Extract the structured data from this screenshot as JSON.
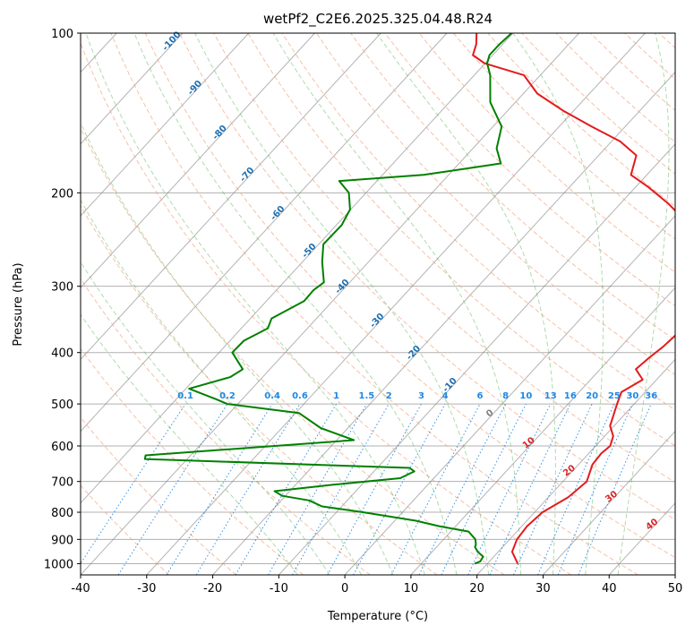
{
  "chart_data": {
    "type": "skew-t",
    "title": "wetPf2_C2E6.2025.325.04.48.R24",
    "xlabel": "Temperature (°C)",
    "ylabel": "Pressure (hPa)",
    "xlim": [
      -40,
      50
    ],
    "ylim": [
      1050,
      100
    ],
    "y_scale": "log",
    "grid": true,
    "x_ticks": [
      "-40",
      "-30",
      "-20",
      "-10",
      "0",
      "10",
      "20",
      "30",
      "40",
      "50"
    ],
    "y_ticks": [
      "100",
      "200",
      "300",
      "400",
      "500",
      "600",
      "700",
      "800",
      "900",
      "1000"
    ],
    "colors": {
      "temperature": "#e41a1c",
      "dewpoint": "#008000",
      "isotherm": "#808080",
      "dry_adiabat": "#f4a582",
      "moist_adiabat": "#4daf4a",
      "mixing_ratio": "#1e88e5",
      "isotherm_label": "#1f6fb0",
      "adiabat_label": "#d62728"
    },
    "series": [
      {
        "key": "temperature",
        "points": [
          [
            24.6,
            1000
          ],
          [
            22.1,
            950
          ],
          [
            21.1,
            900
          ],
          [
            20.8,
            850
          ],
          [
            21.2,
            800
          ],
          [
            23.0,
            750
          ],
          [
            23.6,
            700
          ],
          [
            22.1,
            650
          ],
          [
            21.9,
            620
          ],
          [
            22.2,
            600
          ],
          [
            21.3,
            575
          ],
          [
            19.4,
            550
          ],
          [
            17.4,
            500
          ],
          [
            16.4,
            475
          ],
          [
            17.9,
            450
          ],
          [
            15.4,
            430
          ],
          [
            15.8,
            410
          ],
          [
            16.4,
            390
          ],
          [
            16.7,
            370
          ],
          [
            15.6,
            350
          ],
          [
            14.7,
            330
          ],
          [
            14.2,
            310
          ],
          [
            13.4,
            290
          ],
          [
            11.0,
            270
          ],
          [
            7.6,
            250
          ],
          [
            3.4,
            230
          ],
          [
            -2.6,
            210
          ],
          [
            -8.1,
            195
          ],
          [
            -12.4,
            185
          ],
          [
            -14.3,
            170
          ],
          [
            -18.7,
            160
          ],
          [
            -25.1,
            150
          ],
          [
            -31.6,
            140
          ],
          [
            -37.9,
            130
          ],
          [
            -42.5,
            120
          ],
          [
            -50.1,
            114
          ],
          [
            -53.0,
            110
          ],
          [
            -54.0,
            105
          ],
          [
            -55.5,
            100
          ]
        ]
      },
      {
        "key": "dewpoint",
        "points": [
          [
            18.1,
            1000
          ],
          [
            18.6,
            990
          ],
          [
            18.4,
            970
          ],
          [
            16.9,
            950
          ],
          [
            15.8,
            930
          ],
          [
            15.6,
            920
          ],
          [
            14.8,
            900
          ],
          [
            12.7,
            870
          ],
          [
            7.5,
            850
          ],
          [
            3.2,
            830
          ],
          [
            -6.0,
            800
          ],
          [
            -13.0,
            780
          ],
          [
            -15.8,
            760
          ],
          [
            -20.5,
            745
          ],
          [
            -22.3,
            730
          ],
          [
            -14.3,
            710
          ],
          [
            -5.1,
            690
          ],
          [
            -3.9,
            670
          ],
          [
            -5.1,
            660
          ],
          [
            -46.4,
            635
          ],
          [
            -46.8,
            625
          ],
          [
            -17.4,
            585
          ],
          [
            -24.1,
            555
          ],
          [
            -29.5,
            520
          ],
          [
            -41.6,
            500
          ],
          [
            -43.9,
            490
          ],
          [
            -49.5,
            468
          ],
          [
            -44.9,
            445
          ],
          [
            -44.1,
            430
          ],
          [
            -48.0,
            400
          ],
          [
            -47.9,
            380
          ],
          [
            -46.0,
            360
          ],
          [
            -46.8,
            345
          ],
          [
            -44.3,
            320
          ],
          [
            -44.4,
            305
          ],
          [
            -43.9,
            295
          ],
          [
            -47.0,
            270
          ],
          [
            -49.3,
            250
          ],
          [
            -49.2,
            230
          ],
          [
            -50.1,
            215
          ],
          [
            -52.6,
            200
          ],
          [
            -55.7,
            190
          ],
          [
            -43.8,
            185
          ],
          [
            -33.7,
            176
          ],
          [
            -36.4,
            165
          ],
          [
            -38.7,
            150
          ],
          [
            -43.8,
            135
          ],
          [
            -47.6,
            120
          ],
          [
            -49.7,
            114
          ],
          [
            -50.5,
            110
          ],
          [
            -50.5,
            105
          ],
          [
            -50.2,
            100
          ]
        ]
      }
    ],
    "isotherm_labels": [
      "-100",
      "-90",
      "-80",
      "-70",
      "-60",
      "-50",
      "-40",
      "-30",
      "-20",
      "-10"
    ],
    "isotherm_label_values": [
      -100,
      -90,
      -80,
      -70,
      -60,
      -50,
      -40,
      -30,
      -20,
      -10
    ],
    "mixing_ratio_labels": [
      "0.1",
      "0.2",
      "0.4",
      "0.6",
      "1",
      "1.5",
      "2",
      "3",
      "4",
      "6",
      "8",
      "10",
      "13",
      "16",
      "20",
      "25",
      "30",
      "36"
    ],
    "mixing_ratio_values": [
      0.1,
      0.2,
      0.4,
      0.6,
      1,
      1.5,
      2,
      3,
      4,
      6,
      8,
      10,
      13,
      16,
      20,
      25,
      30,
      36
    ],
    "adiabat_labels": [
      "0",
      "10",
      "20",
      "30",
      "40"
    ],
    "adiabat_label_values": [
      0,
      10,
      20,
      30,
      40
    ]
  }
}
